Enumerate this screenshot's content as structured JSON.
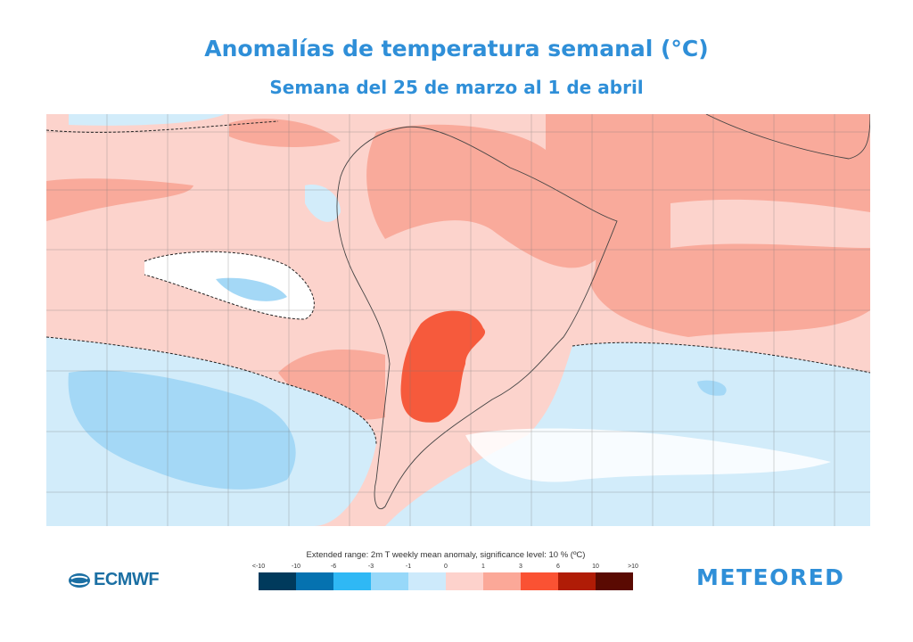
{
  "header": {
    "title": "Anomalías de temperatura semanal (°C)",
    "subtitle": "Semana del 25 de marzo al 1 de abril"
  },
  "legend": {
    "caption": "Extended range: 2m T weekly mean anomaly, significance level: 10 % (ºC)",
    "ticks": [
      "<-10",
      "-10",
      "-6",
      "-3",
      "-1",
      "0",
      "1",
      "3",
      "6",
      "10",
      ">10"
    ],
    "colors": [
      "#003a5c",
      "#0572b0",
      "#2fb8f5",
      "#97d8f9",
      "#cdeafb",
      "#fdd2cc",
      "#fba898",
      "#fa5233",
      "#b01c06",
      "#5a0a02"
    ]
  },
  "map": {
    "colors": {
      "base": "#fcd3cc",
      "salmon": "#f9aa9b",
      "red": "#f65a3c",
      "light_blue": "#d2ecfa",
      "blue": "#a4d8f6",
      "white": "#ffffff"
    }
  },
  "logos": {
    "ecmwf": "ECMWF",
    "meteored": "METEORED"
  }
}
